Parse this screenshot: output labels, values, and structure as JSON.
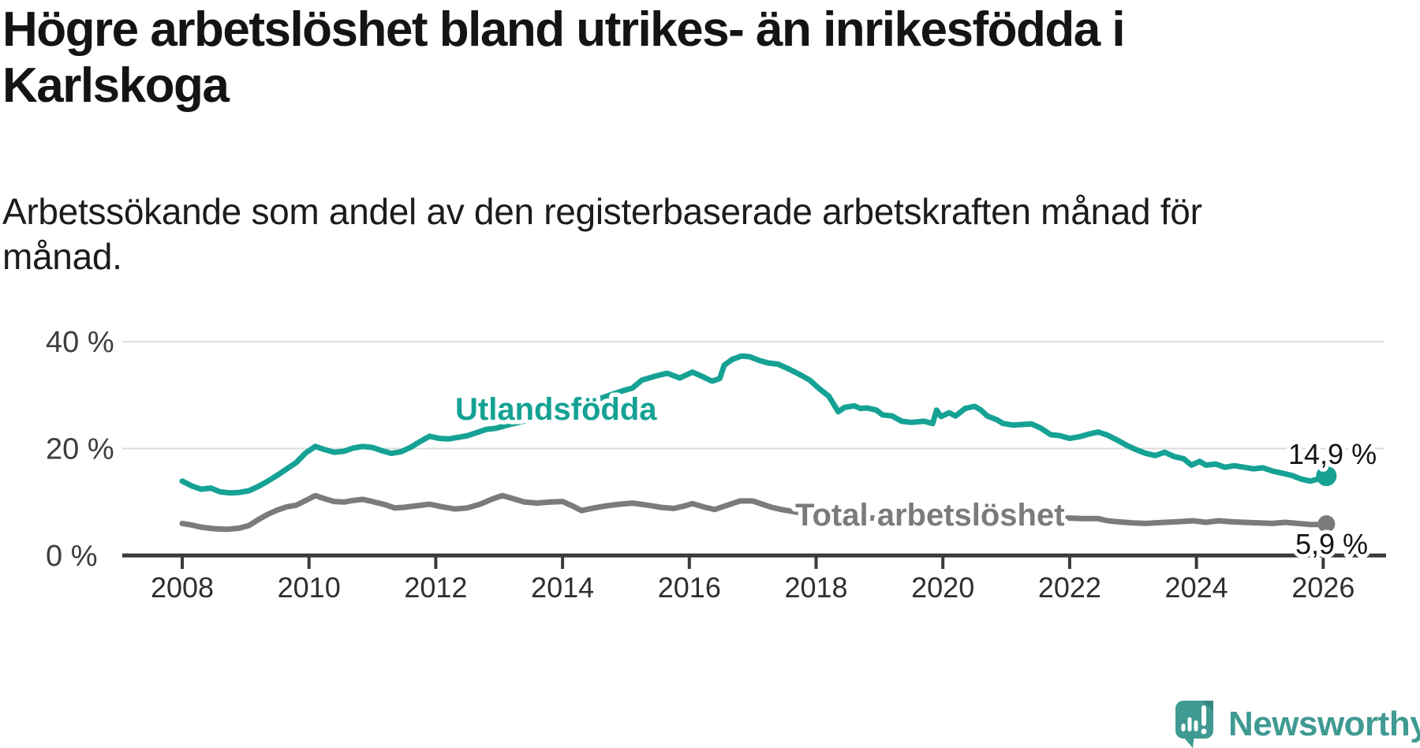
{
  "header": {
    "title_line1": "Högre arbetslöshet bland utrikes- än inrikesfödda i",
    "title_line2": "Karlskoga",
    "subtitle_line1": "Arbetssökande som andel av den registerbaserade arbetskraften månad för",
    "subtitle_line2": "månad."
  },
  "footer": {
    "brand": "Newsworthy",
    "logo_color": "#3f9a92",
    "logo_icon": "bar-chart-speech-bubble-icon"
  },
  "chart_data": {
    "type": "line",
    "unit": "%",
    "grid_on": true,
    "grid_color": "#dcdcdc",
    "axis_color": "#3a3a3a",
    "x_range": [
      2007.05,
      2026.95
    ],
    "ylim": [
      0,
      42
    ],
    "x_ticks": [
      2008,
      2010,
      2012,
      2014,
      2016,
      2018,
      2020,
      2022,
      2024,
      2026
    ],
    "y_ticks": [
      {
        "value": 0,
        "label": "0 %"
      },
      {
        "value": 20,
        "label": "20 %"
      },
      {
        "value": 40,
        "label": "40 %"
      }
    ],
    "series": [
      {
        "name": "Utlandsfödda",
        "color": "#15a294",
        "end_label": "14,9 %",
        "end_dot_radius": 13,
        "points": [
          [
            2008.0,
            13.9
          ],
          [
            2008.15,
            13.0
          ],
          [
            2008.3,
            12.4
          ],
          [
            2008.45,
            12.6
          ],
          [
            2008.6,
            11.9
          ],
          [
            2008.75,
            11.7
          ],
          [
            2008.9,
            11.8
          ],
          [
            2009.05,
            12.1
          ],
          [
            2009.2,
            12.9
          ],
          [
            2009.35,
            13.9
          ],
          [
            2009.5,
            15.0
          ],
          [
            2009.65,
            16.2
          ],
          [
            2009.8,
            17.4
          ],
          [
            2009.95,
            19.2
          ],
          [
            2010.1,
            20.4
          ],
          [
            2010.25,
            19.8
          ],
          [
            2010.4,
            19.3
          ],
          [
            2010.55,
            19.5
          ],
          [
            2010.7,
            20.1
          ],
          [
            2010.85,
            20.4
          ],
          [
            2011.0,
            20.2
          ],
          [
            2011.15,
            19.6
          ],
          [
            2011.3,
            19.1
          ],
          [
            2011.45,
            19.4
          ],
          [
            2011.6,
            20.2
          ],
          [
            2011.75,
            21.3
          ],
          [
            2011.9,
            22.3
          ],
          [
            2012.05,
            21.9
          ],
          [
            2012.2,
            21.8
          ],
          [
            2012.35,
            22.1
          ],
          [
            2012.5,
            22.4
          ],
          [
            2012.65,
            23.0
          ],
          [
            2012.8,
            23.6
          ],
          [
            2012.95,
            23.8
          ],
          [
            2013.2,
            24.6
          ],
          [
            2013.45,
            25.3
          ],
          [
            2013.7,
            25.9
          ],
          [
            2013.95,
            26.5
          ],
          [
            2014.2,
            27.6
          ],
          [
            2014.45,
            28.8
          ],
          [
            2014.7,
            29.8
          ],
          [
            2014.95,
            30.8
          ],
          [
            2015.1,
            31.3
          ],
          [
            2015.25,
            32.8
          ],
          [
            2015.45,
            33.5
          ],
          [
            2015.65,
            34.1
          ],
          [
            2015.85,
            33.2
          ],
          [
            2016.05,
            34.3
          ],
          [
            2016.2,
            33.5
          ],
          [
            2016.36,
            32.6
          ],
          [
            2016.48,
            33.1
          ],
          [
            2016.55,
            35.6
          ],
          [
            2016.68,
            36.7
          ],
          [
            2016.82,
            37.3
          ],
          [
            2016.95,
            37.2
          ],
          [
            2017.1,
            36.5
          ],
          [
            2017.25,
            36.0
          ],
          [
            2017.4,
            35.8
          ],
          [
            2017.55,
            35.0
          ],
          [
            2017.75,
            33.8
          ],
          [
            2017.9,
            32.8
          ],
          [
            2018.06,
            31.1
          ],
          [
            2018.2,
            29.8
          ],
          [
            2018.35,
            26.9
          ],
          [
            2018.45,
            27.7
          ],
          [
            2018.6,
            28.0
          ],
          [
            2018.7,
            27.5
          ],
          [
            2018.8,
            27.6
          ],
          [
            2018.95,
            27.2
          ],
          [
            2019.05,
            26.3
          ],
          [
            2019.2,
            26.1
          ],
          [
            2019.35,
            25.1
          ],
          [
            2019.5,
            24.9
          ],
          [
            2019.7,
            25.1
          ],
          [
            2019.84,
            24.7
          ],
          [
            2019.9,
            27.2
          ],
          [
            2019.97,
            26.0
          ],
          [
            2020.1,
            26.7
          ],
          [
            2020.2,
            26.1
          ],
          [
            2020.35,
            27.5
          ],
          [
            2020.5,
            27.9
          ],
          [
            2020.6,
            27.2
          ],
          [
            2020.7,
            26.1
          ],
          [
            2020.85,
            25.4
          ],
          [
            2020.95,
            24.7
          ],
          [
            2021.1,
            24.4
          ],
          [
            2021.25,
            24.5
          ],
          [
            2021.4,
            24.6
          ],
          [
            2021.55,
            23.8
          ],
          [
            2021.7,
            22.6
          ],
          [
            2021.85,
            22.4
          ],
          [
            2022.0,
            21.9
          ],
          [
            2022.15,
            22.2
          ],
          [
            2022.3,
            22.7
          ],
          [
            2022.45,
            23.1
          ],
          [
            2022.6,
            22.5
          ],
          [
            2022.75,
            21.6
          ],
          [
            2022.9,
            20.6
          ],
          [
            2023.05,
            19.8
          ],
          [
            2023.2,
            19.1
          ],
          [
            2023.35,
            18.7
          ],
          [
            2023.5,
            19.3
          ],
          [
            2023.65,
            18.5
          ],
          [
            2023.8,
            18.1
          ],
          [
            2023.92,
            16.9
          ],
          [
            2024.05,
            17.6
          ],
          [
            2024.15,
            16.9
          ],
          [
            2024.3,
            17.1
          ],
          [
            2024.45,
            16.5
          ],
          [
            2024.6,
            16.8
          ],
          [
            2024.75,
            16.5
          ],
          [
            2024.9,
            16.2
          ],
          [
            2025.05,
            16.4
          ],
          [
            2025.2,
            15.8
          ],
          [
            2025.35,
            15.4
          ],
          [
            2025.5,
            15.0
          ],
          [
            2025.65,
            14.3
          ],
          [
            2025.8,
            13.9
          ],
          [
            2025.92,
            14.3
          ],
          [
            2026.05,
            14.9
          ]
        ]
      },
      {
        "name": "Total arbetslöshet",
        "color": "#7b7b7b",
        "end_label": "5,9 %",
        "end_dot_radius": 11,
        "points": [
          [
            2008.0,
            6.0
          ],
          [
            2008.15,
            5.7
          ],
          [
            2008.3,
            5.3
          ],
          [
            2008.5,
            5.0
          ],
          [
            2008.7,
            4.9
          ],
          [
            2008.9,
            5.1
          ],
          [
            2009.05,
            5.6
          ],
          [
            2009.2,
            6.7
          ],
          [
            2009.35,
            7.7
          ],
          [
            2009.5,
            8.5
          ],
          [
            2009.65,
            9.1
          ],
          [
            2009.8,
            9.4
          ],
          [
            2009.95,
            10.3
          ],
          [
            2010.1,
            11.2
          ],
          [
            2010.25,
            10.6
          ],
          [
            2010.4,
            10.1
          ],
          [
            2010.55,
            10.0
          ],
          [
            2010.7,
            10.3
          ],
          [
            2010.85,
            10.5
          ],
          [
            2011.0,
            10.1
          ],
          [
            2011.2,
            9.5
          ],
          [
            2011.35,
            8.9
          ],
          [
            2011.5,
            9.0
          ],
          [
            2011.7,
            9.3
          ],
          [
            2011.9,
            9.6
          ],
          [
            2012.1,
            9.1
          ],
          [
            2012.3,
            8.7
          ],
          [
            2012.5,
            8.9
          ],
          [
            2012.7,
            9.6
          ],
          [
            2012.9,
            10.6
          ],
          [
            2013.05,
            11.2
          ],
          [
            2013.2,
            10.7
          ],
          [
            2013.4,
            10.0
          ],
          [
            2013.6,
            9.8
          ],
          [
            2013.8,
            10.0
          ],
          [
            2014.0,
            10.1
          ],
          [
            2014.15,
            9.3
          ],
          [
            2014.3,
            8.4
          ],
          [
            2014.5,
            8.9
          ],
          [
            2014.7,
            9.3
          ],
          [
            2014.9,
            9.6
          ],
          [
            2015.1,
            9.8
          ],
          [
            2015.35,
            9.4
          ],
          [
            2015.55,
            9.0
          ],
          [
            2015.75,
            8.8
          ],
          [
            2015.9,
            9.2
          ],
          [
            2016.05,
            9.7
          ],
          [
            2016.25,
            9.0
          ],
          [
            2016.4,
            8.6
          ],
          [
            2016.6,
            9.4
          ],
          [
            2016.8,
            10.2
          ],
          [
            2017.0,
            10.2
          ],
          [
            2017.15,
            9.6
          ],
          [
            2017.3,
            9.0
          ],
          [
            2017.45,
            8.6
          ],
          [
            2017.6,
            8.3
          ],
          [
            2017.8,
            7.9
          ],
          [
            2018.0,
            7.7
          ],
          [
            2018.3,
            7.3
          ],
          [
            2018.6,
            7.1
          ],
          [
            2018.9,
            7.0
          ],
          [
            2019.2,
            6.9
          ],
          [
            2019.5,
            6.8
          ],
          [
            2019.8,
            6.7
          ],
          [
            2020.0,
            6.9
          ],
          [
            2020.15,
            7.6
          ],
          [
            2020.35,
            8.4
          ],
          [
            2020.55,
            8.2
          ],
          [
            2020.75,
            7.9
          ],
          [
            2021.0,
            7.6
          ],
          [
            2021.25,
            7.4
          ],
          [
            2021.5,
            7.2
          ],
          [
            2021.75,
            7.1
          ],
          [
            2022.0,
            7.0
          ],
          [
            2022.2,
            6.9
          ],
          [
            2022.45,
            6.9
          ],
          [
            2022.6,
            6.5
          ],
          [
            2022.75,
            6.3
          ],
          [
            2023.0,
            6.1
          ],
          [
            2023.2,
            6.0
          ],
          [
            2023.5,
            6.2
          ],
          [
            2023.7,
            6.3
          ],
          [
            2023.95,
            6.5
          ],
          [
            2024.15,
            6.2
          ],
          [
            2024.35,
            6.5
          ],
          [
            2024.55,
            6.3
          ],
          [
            2024.75,
            6.2
          ],
          [
            2025.0,
            6.1
          ],
          [
            2025.2,
            6.0
          ],
          [
            2025.4,
            6.2
          ],
          [
            2025.6,
            6.0
          ],
          [
            2025.8,
            5.8
          ],
          [
            2025.95,
            5.8
          ],
          [
            2026.05,
            5.9
          ]
        ]
      }
    ]
  }
}
